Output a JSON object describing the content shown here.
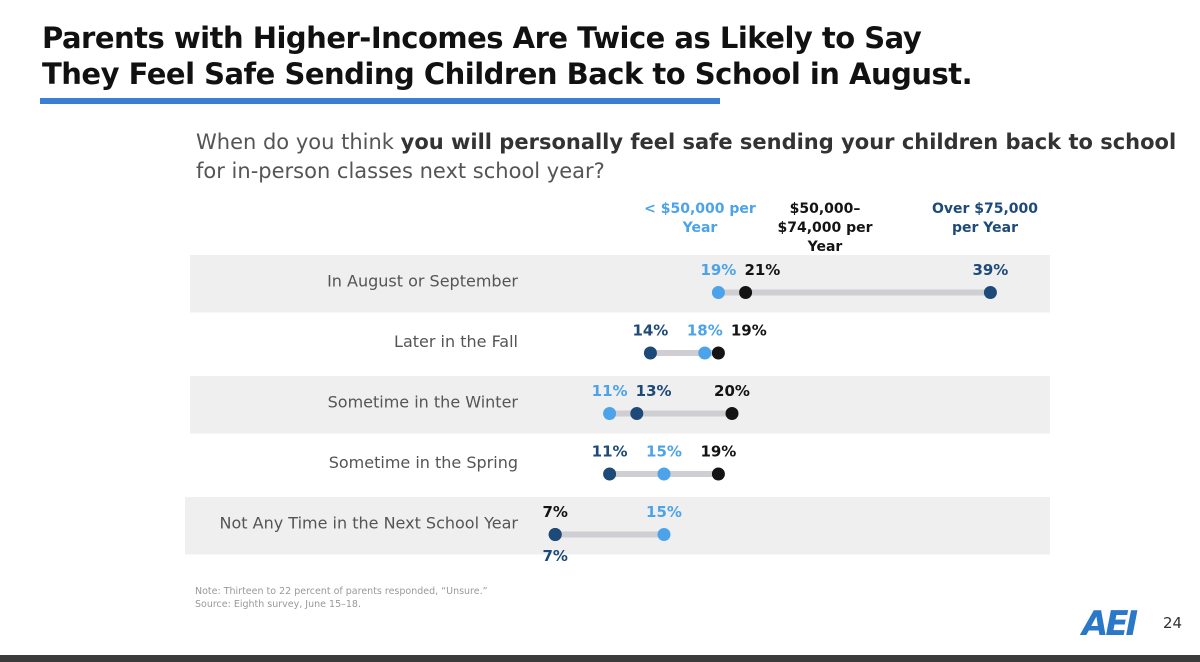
{
  "chart_data": {
    "type": "dot",
    "title": [
      "Parents with Higher-Incomes Are Twice as Likely to Say",
      "They Feel Safe Sending Children Back to School in August."
    ],
    "question": [
      "When do you think ",
      "you will personally feel safe sending your children back to school",
      "for in-person classes next school year?"
    ],
    "categories": [
      "In August or September",
      "Later in the Fall",
      "Sometime in the Winter",
      "Sometime in the Spring",
      "Not Any Time in the Next School Year"
    ],
    "series": [
      {
        "name": "< $50,000 per Year",
        "color": "#4da3ea",
        "values": [
          19,
          18,
          11,
          15,
          15
        ],
        "value_labels": [
          "19%",
          "18%",
          "11%",
          "15%",
          "15%"
        ]
      },
      {
        "name": "$50,000–$74,000 per Year",
        "color": "#141414",
        "values": [
          21,
          19,
          20,
          19,
          7
        ],
        "value_labels": [
          "21%",
          "19%",
          "20%",
          "19%",
          "7%"
        ]
      },
      {
        "name": "Over $75,000 per Year",
        "color": "#1d4a78",
        "values": [
          39,
          14,
          13,
          11,
          7
        ],
        "value_labels": [
          "39%",
          "14%",
          "13%",
          "11%",
          "7%"
        ]
      }
    ],
    "notes": [
      "Note: Thirteen to 22 percent of parents responded, “Unsure.”",
      "Source: Eighth survey, June 15–18."
    ],
    "logo": "AEI",
    "page_number": "24"
  }
}
